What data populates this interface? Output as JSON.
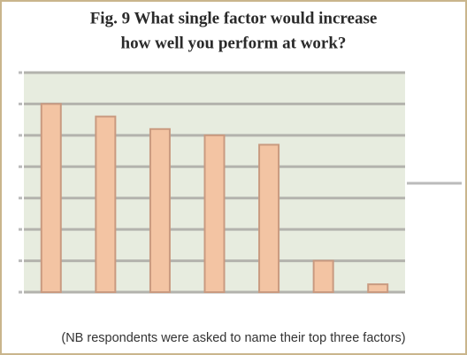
{
  "chart_data": {
    "type": "bar",
    "title": "Fig. 9  What single factor would increase",
    "subtitle": "how well you perform at work?",
    "note": "(NB respondents were asked to name their top three factors)",
    "categories": [
      null,
      null,
      null,
      null,
      null,
      null,
      null
    ],
    "values": [
      6.0,
      5.6,
      5.2,
      5.0,
      4.7,
      1.0,
      0.25
    ],
    "color": "#f3c4a3",
    "ylim": [
      0,
      7
    ],
    "yticks": [
      0,
      1,
      2,
      3,
      4,
      5,
      6,
      7
    ],
    "grid": true
  }
}
